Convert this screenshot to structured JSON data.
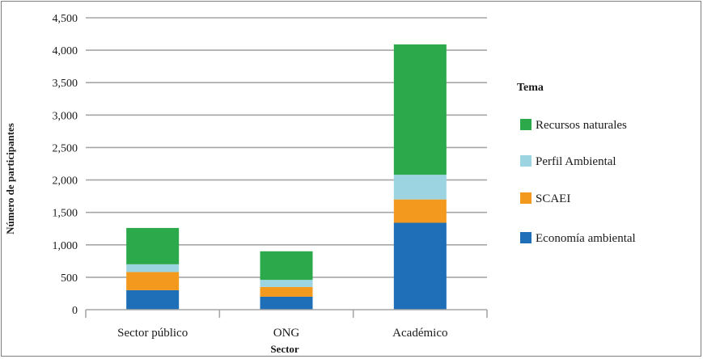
{
  "chart_data": {
    "type": "bar",
    "stacked": true,
    "categories": [
      "Sector público",
      "ONG",
      "Académico"
    ],
    "series": [
      {
        "name": "Economía ambiental",
        "color": "#1f6fb8",
        "values": [
          300,
          200,
          1340
        ]
      },
      {
        "name": "SCAEI",
        "color": "#f39a1e",
        "values": [
          280,
          150,
          360
        ]
      },
      {
        "name": "Perfil Ambiental",
        "color": "#9dd4e2",
        "values": [
          120,
          110,
          380
        ]
      },
      {
        "name": "Recursos naturales",
        "color": "#2ca94a",
        "values": [
          560,
          440,
          2010
        ]
      }
    ],
    "xlabel": "Sector",
    "ylabel": "Número de participantes",
    "ylim": [
      0,
      4500
    ],
    "yticks": [
      "0",
      "500",
      "1,000",
      "1,500",
      "2,000",
      "2,500",
      "3,000",
      "3,500",
      "4,000",
      "4,500"
    ],
    "grid": true,
    "legend": {
      "title": "Tema",
      "position": "right",
      "order": [
        "Recursos naturales",
        "Perfil Ambiental",
        "SCAEI",
        "Economía ambiental"
      ]
    }
  }
}
